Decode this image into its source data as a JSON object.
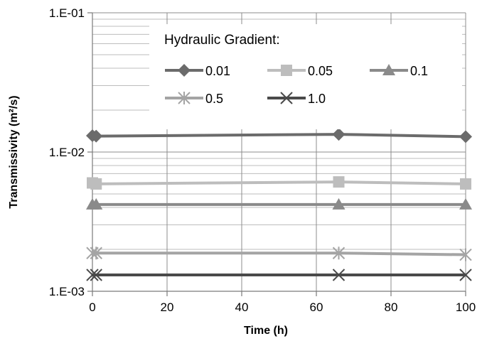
{
  "chart_data": {
    "type": "line",
    "title": "",
    "xlabel": "Time (h)",
    "ylabel": "Transmissivity  (m²/s)",
    "xlim": [
      0,
      100
    ],
    "ylim": [
      0.001,
      0.1
    ],
    "y_scale": "log",
    "x_ticks": [
      0,
      20,
      40,
      60,
      80,
      100
    ],
    "x_tick_labels": [
      "0",
      "20",
      "40",
      "60",
      "80",
      "100"
    ],
    "y_ticks": [
      0.001,
      0.01,
      0.1
    ],
    "y_tick_labels": [
      "1.E-03",
      "1.E-02",
      "1.E-01"
    ],
    "grid": true,
    "legend": {
      "title": "Hydraulic Gradient:",
      "placement": "top"
    },
    "series": [
      {
        "name": "0.01",
        "color": "#6b6b6b",
        "marker": "diamond",
        "x": [
          0,
          1,
          66,
          100
        ],
        "y": [
          0.0131,
          0.013,
          0.0134,
          0.0129
        ]
      },
      {
        "name": "0.05",
        "color": "#bdbdbd",
        "marker": "square",
        "x": [
          0,
          1,
          66,
          100
        ],
        "y": [
          0.006,
          0.0059,
          0.0061,
          0.0059
        ]
      },
      {
        "name": "0.1",
        "color": "#8a8a8a",
        "marker": "triangle",
        "x": [
          0,
          1,
          66,
          100
        ],
        "y": [
          0.0042,
          0.0042,
          0.0042,
          0.0042
        ]
      },
      {
        "name": "0.5",
        "color": "#a4a4a4",
        "marker": "star",
        "x": [
          0,
          1,
          66,
          100
        ],
        "y": [
          0.00188,
          0.00188,
          0.00188,
          0.00183
        ]
      },
      {
        "name": "1.0",
        "color": "#4a4a4a",
        "marker": "x",
        "x": [
          0,
          1,
          66,
          100
        ],
        "y": [
          0.00131,
          0.00131,
          0.00131,
          0.00131
        ]
      }
    ]
  }
}
